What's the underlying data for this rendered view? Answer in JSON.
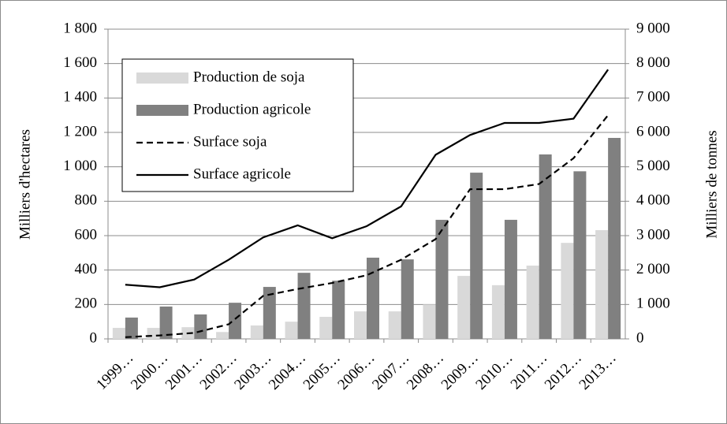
{
  "chart_data": {
    "type": "combo",
    "categories": [
      "1999…",
      "2000…",
      "2001…",
      "2002…",
      "2003…",
      "2004…",
      "2005…",
      "2006…",
      "2007…",
      "2008…",
      "2009…",
      "2010…",
      "2011…",
      "2012…",
      "2013…"
    ],
    "ylabel": "Milliers d'hectares",
    "y2label": "Milliers de tonnes",
    "ylim": [
      0,
      1800
    ],
    "yticks": [
      0,
      200,
      400,
      600,
      800,
      {
        "value": 1000,
        "label": "1 000"
      },
      {
        "value": 1200,
        "label": "1 200"
      },
      {
        "value": 1400,
        "label": "1 400"
      },
      {
        "value": 1600,
        "label": "1 600"
      },
      {
        "value": 1800,
        "label": "1 800"
      }
    ],
    "y2lim": [
      0,
      9000
    ],
    "y2ticks": [
      0,
      {
        "value": 1000,
        "label": "1 000"
      },
      {
        "value": 2000,
        "label": "2 000"
      },
      {
        "value": 3000,
        "label": "3 000"
      },
      {
        "value": 4000,
        "label": "4 000"
      },
      {
        "value": 5000,
        "label": "5 000"
      },
      {
        "value": 6000,
        "label": "6 000"
      },
      {
        "value": 7000,
        "label": "7 000"
      },
      {
        "value": 8000,
        "label": "8 000"
      },
      {
        "value": 9000,
        "label": "9 000"
      }
    ],
    "grid": true,
    "legend": "upper left",
    "series": [
      {
        "name": "Production de soja",
        "type": "bar",
        "axis": "y2",
        "color": "#d9d9d9",
        "values": [
          320,
          320,
          340,
          200,
          390,
          500,
          640,
          800,
          800,
          1000,
          1830,
          1560,
          2130,
          2790,
          3160
        ]
      },
      {
        "name": "Production agricole",
        "type": "bar",
        "axis": "y2",
        "color": "#808080",
        "values": [
          620,
          940,
          710,
          1050,
          1510,
          1920,
          1690,
          2360,
          2310,
          3460,
          4830,
          3460,
          5360,
          4870,
          5840
        ]
      },
      {
        "name": "Surface soja",
        "type": "line",
        "dashed": true,
        "color": "#000000",
        "values": [
          10,
          20,
          35,
          85,
          250,
          290,
          325,
          370,
          460,
          580,
          870,
          870,
          900,
          1050,
          1300
        ]
      },
      {
        "name": "Surface agricole",
        "type": "line",
        "dashed": false,
        "color": "#000000",
        "values": [
          315,
          300,
          345,
          460,
          590,
          660,
          585,
          655,
          770,
          1070,
          1185,
          1255,
          1255,
          1280,
          1565
        ]
      }
    ]
  }
}
